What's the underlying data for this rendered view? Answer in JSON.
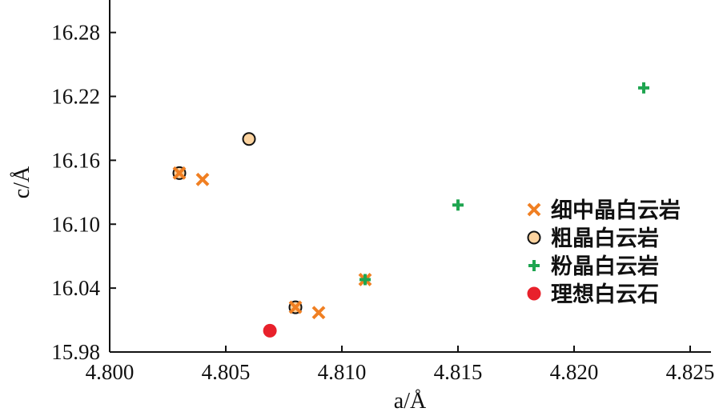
{
  "chart_data": {
    "type": "scatter",
    "xlabel": "a/Å",
    "ylabel": "c/Å",
    "xlim": [
      4.8,
      4.825
    ],
    "ylim": [
      15.98,
      16.3
    ],
    "xticks": [
      "4.800",
      "4.805",
      "4.810",
      "4.815",
      "4.820",
      "4.825"
    ],
    "xtick_values": [
      4.8,
      4.805,
      4.81,
      4.815,
      4.82,
      4.825
    ],
    "yticks": [
      "15.98",
      "16.04",
      "16.10",
      "16.16",
      "16.22",
      "16.28"
    ],
    "ytick_values": [
      15.98,
      16.04,
      16.1,
      16.16,
      16.22,
      16.28
    ],
    "legend_position": "right",
    "series": [
      {
        "name": "细中晶白云岩",
        "marker": "x",
        "color": "#F07F22",
        "points": [
          [
            4.803,
            16.148
          ],
          [
            4.804,
            16.142
          ],
          [
            4.808,
            16.022
          ],
          [
            4.809,
            16.017
          ],
          [
            4.811,
            16.048
          ]
        ]
      },
      {
        "name": "粗晶白云岩",
        "marker": "circle",
        "color": "#FBCB8E",
        "points": [
          [
            4.803,
            16.148
          ],
          [
            4.806,
            16.18
          ],
          [
            4.808,
            16.022
          ]
        ]
      },
      {
        "name": "粉晶白云岩",
        "marker": "plus",
        "color": "#1FA550",
        "points": [
          [
            4.811,
            16.048
          ],
          [
            4.815,
            16.118
          ],
          [
            4.823,
            16.228
          ]
        ]
      },
      {
        "name": "理想白云石",
        "marker": "dot",
        "color": "#E8212B",
        "points": [
          [
            4.8069,
            16.0
          ]
        ]
      }
    ]
  }
}
